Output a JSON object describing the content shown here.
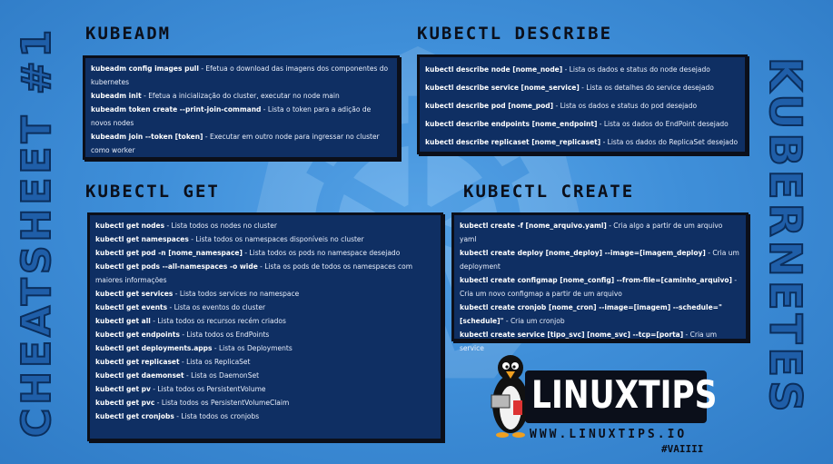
{
  "side_left": "CHEATSHEET #1",
  "side_right": "KUBERNETES",
  "sections": {
    "kubeadm": {
      "title": "KUBEADM",
      "items": [
        {
          "cmd": "kubeadm config images pull",
          "desc": " - Efetua o download das imagens dos componentes do kubernetes"
        },
        {
          "cmd": "kubeadm init",
          "desc": " - Efetua a inicialização do cluster, executar no node main"
        },
        {
          "cmd": "kubeadm token create --print-join-command",
          "desc": " - Lista o token para a adição de novos nodes"
        },
        {
          "cmd": "kubeadm join --token [token]",
          "desc": " - Executar em outro node para ingressar no cluster como worker"
        }
      ]
    },
    "describe": {
      "title": "KUBECTL DESCRIBE",
      "items": [
        {
          "cmd": "kubectl describe node [nome_node]",
          "desc": " - Lista os dados e status do node desejado"
        },
        {
          "cmd": "kubectl describe service [nome_service]",
          "desc": " - Lista os detalhes do service desejado"
        },
        {
          "cmd": "kubectl describe pod [nome_pod]",
          "desc": " - Lista os dados e status do pod desejado"
        },
        {
          "cmd": "kubectl describe endpoints [nome_endpoint]",
          "desc": " - Lista os dados do EndPoint desejado"
        },
        {
          "cmd": "kubectl describe replicaset [nome_replicaset]",
          "desc": " - Lista os dados do ReplicaSet desejado"
        }
      ]
    },
    "get": {
      "title": "KUBECTL GET",
      "items": [
        {
          "cmd": "kubectl get nodes",
          "desc": " - Lista todos os nodes no cluster"
        },
        {
          "cmd": "kubectl get namespaces",
          "desc": " - Lista todos os namespaces disponíveis no cluster"
        },
        {
          "cmd": "kubectl get pod -n [nome_namespace]",
          "desc": " - Lista todos os pods no namespace desejado"
        },
        {
          "cmd": "kubectl get pods --all-namespaces -o wide",
          "desc": " - Lista os pods de todos os namespaces com maiores informações"
        },
        {
          "cmd": "kubectl get services",
          "desc": " - Lista todos services no namespace"
        },
        {
          "cmd": "kubectl get events",
          "desc": " - Lista os eventos do cluster"
        },
        {
          "cmd": "kubectl get all",
          "desc": " - Lista todos os recursos recém criados"
        },
        {
          "cmd": "kubectl get endpoints",
          "desc": " - Lista todos os EndPoints"
        },
        {
          "cmd": "kubectl get deployments.apps",
          "desc": " - Lista os Deployments"
        },
        {
          "cmd": "kubectl get replicaset",
          "desc": " - Lista os ReplicaSet"
        },
        {
          "cmd": "kubectl get daemonset",
          "desc": " - Lista os DaemonSet"
        },
        {
          "cmd": "kubectl get pv",
          "desc": " - Lista todos os PersistentVolume"
        },
        {
          "cmd": "kubectl get pvc",
          "desc": " - Lista todos os PersistentVolumeClaim"
        },
        {
          "cmd": "kubectl get cronjobs",
          "desc": " - Lista todos os cronjobs"
        }
      ]
    },
    "create": {
      "title": "KUBECTL CREATE",
      "items": [
        {
          "cmd": "kubectl create -f [nome_arquivo.yaml]",
          "desc": " - Cria algo a partir de um arquivo yaml"
        },
        {
          "cmd": "kubectl create deploy [nome_deploy] --image=[imagem_deploy]",
          "desc": " - Cria um deployment"
        },
        {
          "cmd": "kubectl create configmap [nome_config] --from-file=[caminho_arquivo]",
          "desc": " - Cria um novo configmap a partir de um arquivo"
        },
        {
          "cmd": "kubectl create cronjob [nome_cron] --image=[imagem] --schedule=\"[schedule]\"",
          "desc": " - Cria um cronjob"
        },
        {
          "cmd": "kubectl create service [tipo_svc] [nome_svc] --tcp=[porta]",
          "desc": " - Cria um service"
        }
      ]
    }
  },
  "logo": {
    "name": "LINUXTIPS",
    "url": "WWW.LINUXTIPS.IO",
    "tag": "#VAIIII"
  },
  "icons": {
    "background": "kubernetes-wheel-icon",
    "mascot": "penguin-icon"
  }
}
